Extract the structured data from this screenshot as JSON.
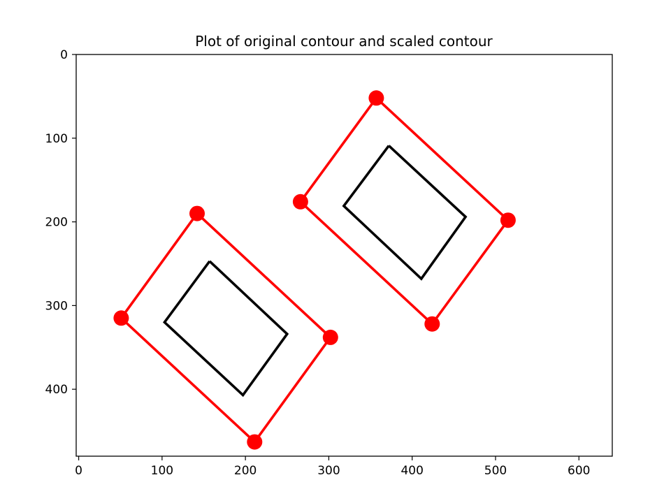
{
  "chart_data": {
    "type": "line",
    "title": "Plot of original contour and scaled contour",
    "xlabel": "",
    "ylabel": "",
    "xlim": [
      -3,
      640
    ],
    "ylim": [
      480,
      0
    ],
    "x_ticks": [
      0,
      100,
      200,
      300,
      400,
      500,
      600
    ],
    "y_ticks": [
      0,
      100,
      200,
      300,
      400
    ],
    "x_tick_labels": [
      "0",
      "100",
      "200",
      "300",
      "400",
      "500",
      "600"
    ],
    "y_tick_labels": [
      "0",
      "100",
      "200",
      "300",
      "400"
    ],
    "grid": false,
    "legend": "none",
    "series": [
      {
        "role": "scaled-contour",
        "color": "#ff0000",
        "markers": true,
        "points": [
          [
            142,
            190
          ],
          [
            51,
            315
          ],
          [
            211,
            463
          ],
          [
            302,
            338
          ],
          [
            142,
            190
          ]
        ]
      },
      {
        "role": "scaled-contour",
        "color": "#ff0000",
        "markers": true,
        "points": [
          [
            357,
            52
          ],
          [
            266,
            176
          ],
          [
            424,
            322
          ],
          [
            515,
            198
          ],
          [
            357,
            52
          ]
        ]
      },
      {
        "role": "original-contour",
        "color": "#000000",
        "markers": false,
        "points": [
          [
            157,
            247
          ],
          [
            103,
            320
          ],
          [
            197,
            407
          ],
          [
            250,
            334
          ],
          [
            157,
            247
          ]
        ]
      },
      {
        "role": "original-contour",
        "color": "#000000",
        "markers": false,
        "points": [
          [
            372,
            109
          ],
          [
            318,
            181
          ],
          [
            411,
            268
          ],
          [
            464,
            194
          ],
          [
            372,
            109
          ]
        ]
      }
    ]
  }
}
